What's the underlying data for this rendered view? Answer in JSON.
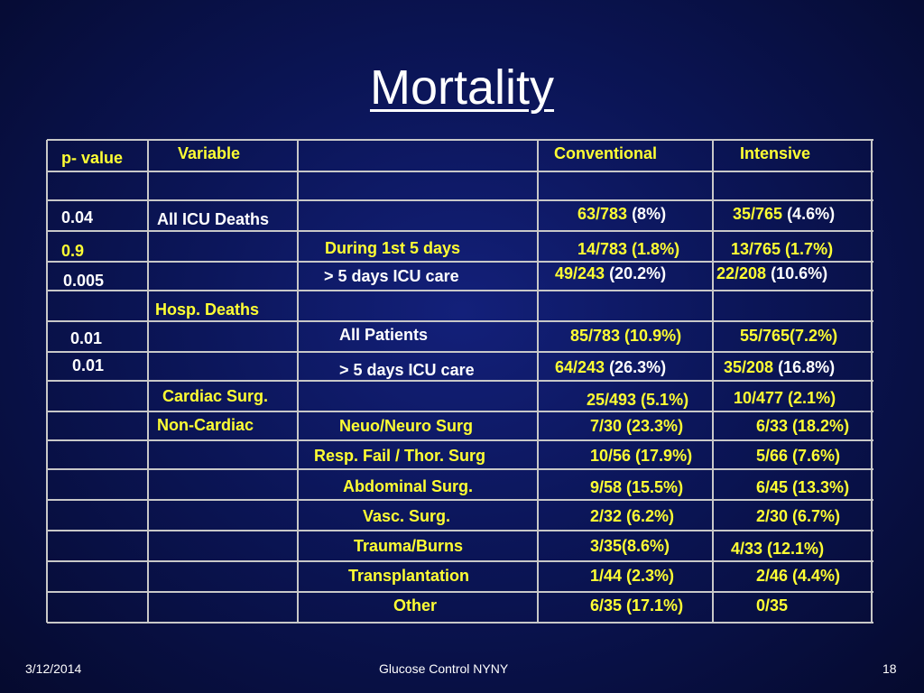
{
  "slide": {
    "title": "Mortality",
    "footer_date": "3/12/2014",
    "footer_center": "Glucose Control NYNY",
    "footer_page": "18"
  },
  "table": {
    "headers": {
      "pvalue": "p- value",
      "variable": "Variable",
      "conventional": "Conventional",
      "intensive": "Intensive"
    },
    "r_icu_all": {
      "p": "0.04",
      "label": "All ICU Deaths",
      "conv_a": "63/783",
      "conv_b": " (8%)",
      "int_a": "35/765",
      "int_b": " (4.6%)"
    },
    "r_icu_5d": {
      "p": "0.9",
      "label": "During 1st 5 days",
      "conv": "14/783 (1.8%)",
      "int": "13/765 (1.7%)"
    },
    "r_icu_gt5": {
      "p": "0.005",
      "label": "> 5 days ICU care",
      "conv_a": "49/243",
      "conv_b": " (20.2%)",
      "int_a": "22/208",
      "int_b": " (10.6%)"
    },
    "hosp_label": "Hosp. Deaths",
    "r_hosp_all": {
      "p": "0.01",
      "label": "All Patients",
      "conv": "85/783 (10.9%)",
      "int": "55/765(7.2%)"
    },
    "r_hosp_gt5": {
      "p": "0.01",
      "label": "> 5 days ICU care",
      "conv_a": "64/243",
      "conv_b": " (26.3%)",
      "int_a": "35/208",
      "int_b": " (16.8%)"
    },
    "r_cardiac": {
      "label": "Cardiac Surg.",
      "conv": "25/493 (5.1%)",
      "int": "10/477 (2.1%)"
    },
    "noncardiac_label": "Non-Cardiac",
    "r_neuro": {
      "label": "Neuo/Neuro Surg",
      "conv": "7/30 (23.3%)",
      "int": "6/33 (18.2%)"
    },
    "r_resp": {
      "label": "Resp. Fail / Thor. Surg",
      "conv": "10/56 (17.9%)",
      "int": "5/66 (7.6%)"
    },
    "r_abd": {
      "label": "Abdominal Surg.",
      "conv": "9/58 (15.5%)",
      "int": "6/45 (13.3%)"
    },
    "r_vasc": {
      "label": "Vasc. Surg.",
      "conv": "2/32 (6.2%)",
      "int": "2/30 (6.7%)"
    },
    "r_trauma": {
      "label": "Trauma/Burns",
      "conv": "3/35(8.6%)",
      "int": "4/33 (12.1%)"
    },
    "r_transp": {
      "label": "Transplantation",
      "conv": "1/44 (2.3%)",
      "int": "2/46 (4.4%)"
    },
    "r_other": {
      "label": "Other",
      "conv": "6/35 (17.1%)",
      "int": "0/35"
    }
  }
}
